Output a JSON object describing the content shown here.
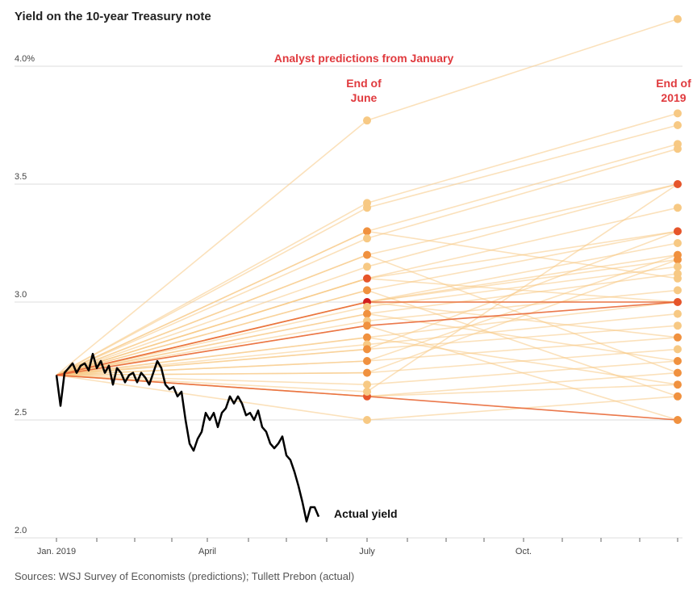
{
  "chart_data": {
    "type": "line",
    "title": "Yield on the 10-year Treasury note",
    "source": "Sources: WSJ Survey of Economists (predictions); Tullett Prebon (actual)",
    "ylim": [
      2.0,
      4.2
    ],
    "y_ticks": [
      "4.0%",
      "3.5",
      "3.0",
      "2.5",
      "2.0"
    ],
    "y_tick_values": [
      4.0,
      3.5,
      3.0,
      2.5,
      2.0
    ],
    "x_ticks": [
      "Jan. 2019",
      "April",
      "July",
      "Oct."
    ],
    "annotations": {
      "predictions_label": "Analyst predictions from January",
      "june_label": [
        "End of",
        "June"
      ],
      "end2019_label": [
        "End of",
        "2019"
      ],
      "actual_label": "Actual yield"
    },
    "colors": {
      "prediction_light": "#f7c984",
      "prediction_mid": "#f0913f",
      "prediction_dark": "#e6552a",
      "prediction_darkest": "#d21d1d",
      "actual": "#000000",
      "annotation": "#e03a3e",
      "grid": "#dddddd"
    },
    "start_value": 2.69,
    "predictions": [
      [
        3.77,
        4.2
      ],
      [
        3.42,
        3.8
      ],
      [
        3.4,
        3.75
      ],
      [
        3.3,
        3.67
      ],
      [
        3.27,
        3.65
      ],
      [
        3.2,
        3.5
      ],
      [
        3.15,
        3.5
      ],
      [
        3.1,
        3.4
      ],
      [
        3.1,
        3.3
      ],
      [
        3.05,
        3.3
      ],
      [
        3.0,
        3.25
      ],
      [
        3.0,
        3.2
      ],
      [
        3.0,
        3.18
      ],
      [
        2.98,
        3.15
      ],
      [
        2.95,
        3.12
      ],
      [
        2.92,
        3.05
      ],
      [
        2.9,
        3.0
      ],
      [
        2.85,
        3.0
      ],
      [
        2.82,
        2.95
      ],
      [
        2.8,
        2.9
      ],
      [
        2.75,
        2.85
      ],
      [
        2.7,
        2.8
      ],
      [
        2.65,
        2.75
      ],
      [
        2.6,
        2.7
      ],
      [
        2.6,
        2.65
      ],
      [
        2.5,
        2.6
      ],
      [
        2.6,
        2.5
      ],
      [
        3.0,
        3.0
      ],
      [
        2.9,
        2.5
      ],
      [
        3.2,
        2.7
      ],
      [
        2.95,
        2.75
      ],
      [
        2.85,
        2.65
      ],
      [
        3.1,
        3.0
      ],
      [
        3.3,
        3.1
      ],
      [
        2.8,
        3.3
      ],
      [
        2.7,
        3.18
      ],
      [
        3.05,
        2.6
      ],
      [
        2.75,
        3.2
      ],
      [
        2.62,
        3.5
      ],
      [
        3.0,
        2.85
      ]
    ],
    "actual": [
      [
        0.0,
        2.69
      ],
      [
        0.02,
        2.56
      ],
      [
        0.04,
        2.7
      ],
      [
        0.06,
        2.72
      ],
      [
        0.08,
        2.74
      ],
      [
        0.1,
        2.7
      ],
      [
        0.12,
        2.73
      ],
      [
        0.14,
        2.74
      ],
      [
        0.16,
        2.71
      ],
      [
        0.18,
        2.78
      ],
      [
        0.2,
        2.72
      ],
      [
        0.22,
        2.75
      ],
      [
        0.24,
        2.7
      ],
      [
        0.26,
        2.73
      ],
      [
        0.28,
        2.65
      ],
      [
        0.3,
        2.72
      ],
      [
        0.32,
        2.7
      ],
      [
        0.34,
        2.66
      ],
      [
        0.36,
        2.69
      ],
      [
        0.38,
        2.7
      ],
      [
        0.4,
        2.66
      ],
      [
        0.42,
        2.7
      ],
      [
        0.44,
        2.68
      ],
      [
        0.46,
        2.65
      ],
      [
        0.48,
        2.7
      ],
      [
        0.5,
        2.75
      ],
      [
        0.52,
        2.72
      ],
      [
        0.54,
        2.65
      ],
      [
        0.56,
        2.63
      ],
      [
        0.58,
        2.64
      ],
      [
        0.6,
        2.6
      ],
      [
        0.62,
        2.62
      ],
      [
        0.64,
        2.5
      ],
      [
        0.66,
        2.4
      ],
      [
        0.68,
        2.37
      ],
      [
        0.7,
        2.42
      ],
      [
        0.72,
        2.45
      ],
      [
        0.74,
        2.53
      ],
      [
        0.76,
        2.5
      ],
      [
        0.78,
        2.53
      ],
      [
        0.8,
        2.47
      ],
      [
        0.82,
        2.53
      ],
      [
        0.84,
        2.55
      ],
      [
        0.86,
        2.6
      ],
      [
        0.88,
        2.57
      ],
      [
        0.9,
        2.6
      ],
      [
        0.92,
        2.57
      ],
      [
        0.94,
        2.52
      ],
      [
        0.96,
        2.53
      ],
      [
        0.98,
        2.5
      ],
      [
        1.0,
        2.54
      ],
      [
        1.02,
        2.47
      ],
      [
        1.04,
        2.45
      ],
      [
        1.06,
        2.4
      ],
      [
        1.08,
        2.38
      ],
      [
        1.1,
        2.4
      ],
      [
        1.12,
        2.43
      ],
      [
        1.14,
        2.35
      ],
      [
        1.16,
        2.33
      ],
      [
        1.18,
        2.28
      ],
      [
        1.2,
        2.22
      ],
      [
        1.22,
        2.15
      ],
      [
        1.24,
        2.07
      ],
      [
        1.26,
        2.13
      ],
      [
        1.28,
        2.13
      ],
      [
        1.3,
        2.09
      ]
    ]
  }
}
